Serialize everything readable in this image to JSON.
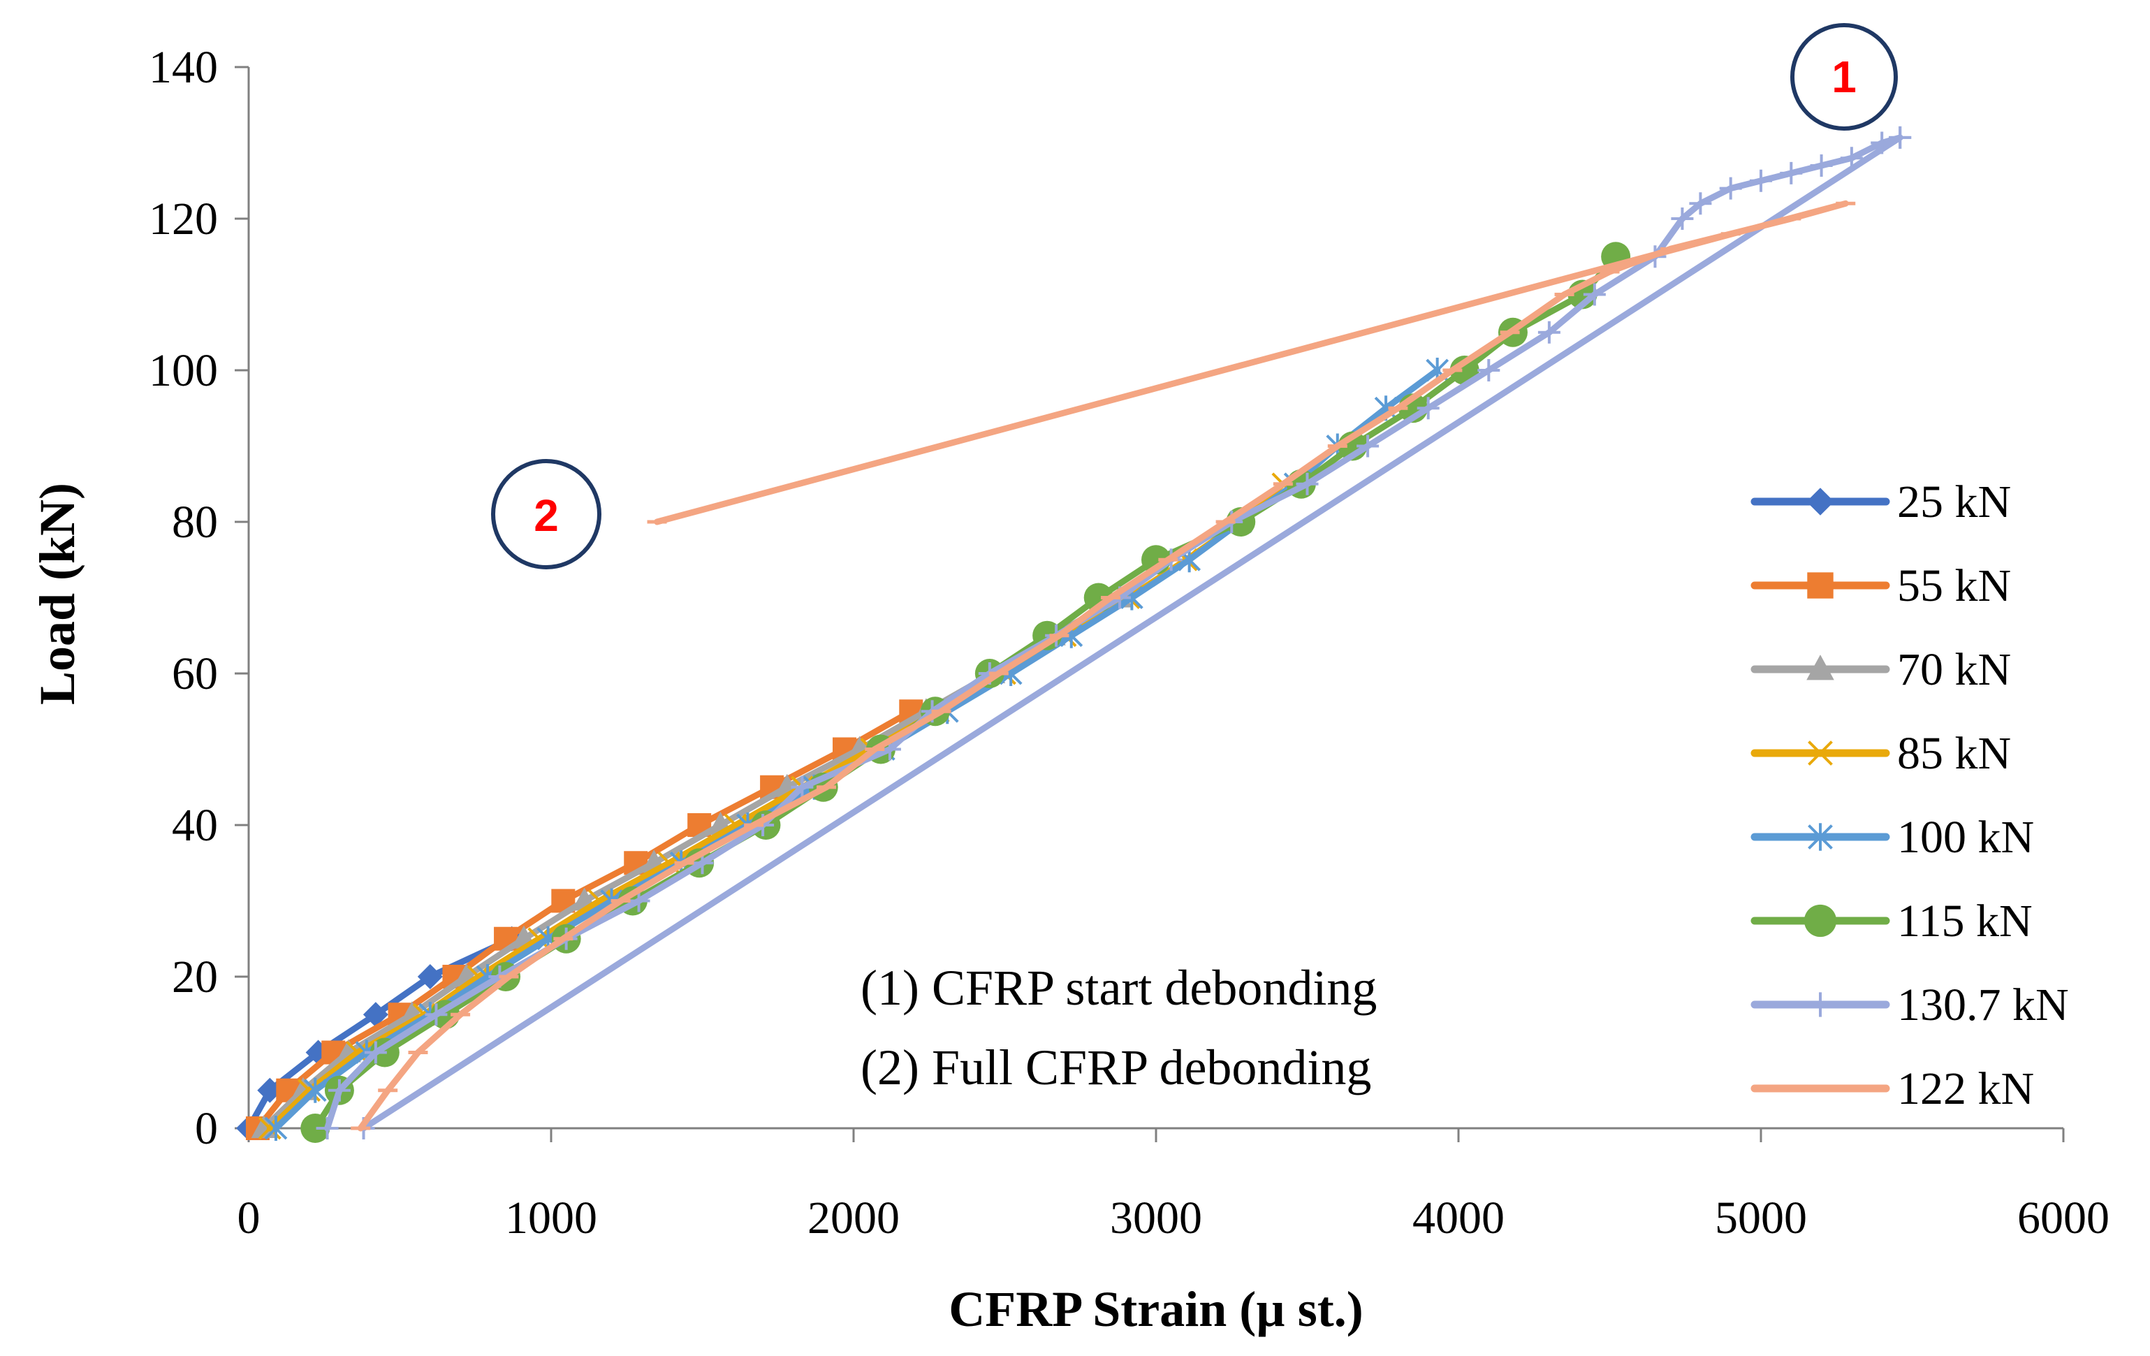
{
  "chart_data": {
    "type": "line",
    "xlabel": "CFRP Strain (µ st.)",
    "ylabel": "Load  (kN)",
    "xlim": [
      0,
      6000
    ],
    "ylim": [
      0,
      140
    ],
    "x_ticks": [
      "0",
      "1000",
      "2000",
      "3000",
      "4000",
      "5000",
      "6000"
    ],
    "y_ticks": [
      "0",
      "20",
      "40",
      "60",
      "80",
      "100",
      "120",
      "140"
    ],
    "grid": false,
    "legend_position": "right",
    "series": [
      {
        "name": "25 kN",
        "color": "#4472C4",
        "marker": "diamond",
        "points": [
          [
            0,
            0
          ],
          [
            70,
            5
          ],
          [
            230,
            10
          ],
          [
            420,
            15
          ],
          [
            600,
            20
          ],
          [
            870,
            25
          ]
        ]
      },
      {
        "name": "55 kN",
        "color": "#ED7D31",
        "marker": "square",
        "points": [
          [
            30,
            0
          ],
          [
            130,
            5
          ],
          [
            280,
            10
          ],
          [
            500,
            15
          ],
          [
            680,
            20
          ],
          [
            850,
            25
          ],
          [
            1040,
            30
          ],
          [
            1280,
            35
          ],
          [
            1490,
            40
          ],
          [
            1730,
            45
          ],
          [
            1970,
            50
          ],
          [
            2190,
            55
          ]
        ]
      },
      {
        "name": "70 kN",
        "color": "#A5A5A5",
        "marker": "triangle",
        "points": [
          [
            50,
            0
          ],
          [
            180,
            5
          ],
          [
            330,
            10
          ],
          [
            540,
            15
          ],
          [
            720,
            20
          ],
          [
            910,
            25
          ],
          [
            1110,
            30
          ],
          [
            1340,
            35
          ],
          [
            1560,
            40
          ],
          [
            1780,
            45
          ],
          [
            2020,
            50
          ],
          [
            2240,
            55
          ],
          [
            2460,
            60
          ],
          [
            2660,
            65
          ],
          [
            2880,
            70
          ]
        ]
      },
      {
        "name": "85 kN",
        "color": "#E9A90A",
        "marker": "x",
        "points": [
          [
            70,
            0
          ],
          [
            200,
            5
          ],
          [
            360,
            10
          ],
          [
            580,
            15
          ],
          [
            760,
            20
          ],
          [
            960,
            25
          ],
          [
            1160,
            30
          ],
          [
            1390,
            35
          ],
          [
            1610,
            40
          ],
          [
            1830,
            45
          ],
          [
            2060,
            50
          ],
          [
            2280,
            55
          ],
          [
            2500,
            60
          ],
          [
            2700,
            65
          ],
          [
            2910,
            70
          ],
          [
            3100,
            75
          ],
          [
            3280,
            80
          ],
          [
            3420,
            85
          ]
        ]
      },
      {
        "name": "100 kN",
        "color": "#5B9BD5",
        "marker": "asterisk",
        "points": [
          [
            90,
            0
          ],
          [
            220,
            5
          ],
          [
            390,
            10
          ],
          [
            600,
            15
          ],
          [
            790,
            20
          ],
          [
            990,
            25
          ],
          [
            1200,
            30
          ],
          [
            1430,
            35
          ],
          [
            1650,
            40
          ],
          [
            1870,
            45
          ],
          [
            2100,
            50
          ],
          [
            2310,
            55
          ],
          [
            2520,
            60
          ],
          [
            2720,
            65
          ],
          [
            2920,
            70
          ],
          [
            3110,
            75
          ],
          [
            3280,
            80
          ],
          [
            3460,
            85
          ],
          [
            3600,
            90
          ],
          [
            3760,
            95
          ],
          [
            3930,
            100
          ]
        ]
      },
      {
        "name": "115 kN",
        "color": "#70AD47",
        "marker": "circle",
        "points": [
          [
            220,
            0
          ],
          [
            300,
            5
          ],
          [
            450,
            10
          ],
          [
            650,
            15
          ],
          [
            850,
            20
          ],
          [
            1050,
            25
          ],
          [
            1270,
            30
          ],
          [
            1490,
            35
          ],
          [
            1710,
            40
          ],
          [
            1900,
            45
          ],
          [
            2090,
            50
          ],
          [
            2270,
            55
          ],
          [
            2450,
            60
          ],
          [
            2640,
            65
          ],
          [
            2810,
            70
          ],
          [
            3000,
            75
          ],
          [
            3280,
            80
          ],
          [
            3480,
            85
          ],
          [
            3650,
            90
          ],
          [
            3850,
            95
          ],
          [
            4020,
            100
          ],
          [
            4180,
            105
          ],
          [
            4410,
            110
          ],
          [
            4520,
            115
          ]
        ]
      },
      {
        "name": "130.7 kN",
        "color": "#9AA9DC",
        "marker": "plus",
        "points": [
          [
            260,
            0
          ],
          [
            300,
            5
          ],
          [
            420,
            10
          ],
          [
            620,
            15
          ],
          [
            830,
            20
          ],
          [
            1050,
            25
          ],
          [
            1290,
            30
          ],
          [
            1500,
            35
          ],
          [
            1700,
            40
          ],
          [
            1830,
            45
          ],
          [
            2120,
            50
          ],
          [
            2260,
            55
          ],
          [
            2450,
            60
          ],
          [
            2670,
            65
          ],
          [
            2880,
            70
          ],
          [
            3050,
            75
          ],
          [
            3250,
            80
          ],
          [
            3500,
            85
          ],
          [
            3700,
            90
          ],
          [
            3900,
            95
          ],
          [
            4100,
            100
          ],
          [
            4300,
            105
          ],
          [
            4450,
            110
          ],
          [
            4650,
            115
          ],
          [
            4740,
            120
          ],
          [
            4800,
            122
          ],
          [
            4900,
            124
          ],
          [
            5000,
            125
          ],
          [
            5100,
            126
          ],
          [
            5200,
            127
          ],
          [
            5300,
            128
          ],
          [
            5400,
            130
          ],
          [
            5460,
            130.7
          ],
          [
            380,
            0
          ],
          [
            5460,
            130.7
          ]
        ]
      },
      {
        "name": "122 kN",
        "color": "#F4A582",
        "marker": "dash",
        "points": [
          [
            370,
            0
          ],
          [
            460,
            5
          ],
          [
            560,
            10
          ],
          [
            700,
            15
          ],
          [
            860,
            20
          ],
          [
            1040,
            25
          ],
          [
            1230,
            30
          ],
          [
            1440,
            35
          ],
          [
            1670,
            40
          ],
          [
            1910,
            45
          ],
          [
            2070,
            50
          ],
          [
            2290,
            55
          ],
          [
            2480,
            60
          ],
          [
            2680,
            65
          ],
          [
            2850,
            70
          ],
          [
            3040,
            75
          ],
          [
            3230,
            80
          ],
          [
            3420,
            85
          ],
          [
            3600,
            90
          ],
          [
            3800,
            95
          ],
          [
            3980,
            100
          ],
          [
            4170,
            105
          ],
          [
            4350,
            110
          ],
          [
            4500,
            113
          ],
          [
            4700,
            116
          ],
          [
            4900,
            118
          ],
          [
            5100,
            120
          ],
          [
            5280,
            122
          ],
          [
            1350,
            80
          ]
        ]
      }
    ],
    "annotations": {
      "callout_1": "1",
      "callout_2": "2",
      "note_1": "(1) CFRP start debonding",
      "note_2": "(2) Full CFRP debonding"
    }
  }
}
